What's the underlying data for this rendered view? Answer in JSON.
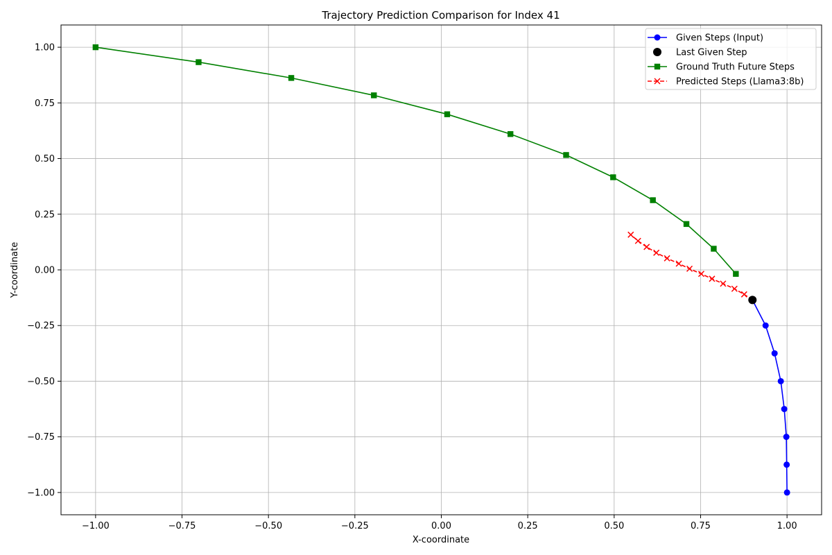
{
  "chart_data": {
    "type": "line",
    "title": "Trajectory Prediction Comparison for Index 41",
    "xlabel": "X-coordinate",
    "ylabel": "Y-coordinate",
    "xlim": [
      -1.1,
      1.1
    ],
    "ylim": [
      -1.1,
      1.1
    ],
    "xticks": [
      -1.0,
      -0.75,
      -0.5,
      -0.25,
      0.0,
      0.25,
      0.5,
      0.75,
      1.0
    ],
    "yticks": [
      -1.0,
      -0.75,
      -0.5,
      -0.25,
      0.0,
      0.25,
      0.5,
      0.75,
      1.0
    ],
    "xtick_labels": [
      "−1.00",
      "−0.75",
      "−0.50",
      "−0.25",
      "0.00",
      "0.25",
      "0.50",
      "0.75",
      "1.00"
    ],
    "ytick_labels": [
      "−1.00",
      "−0.75",
      "−0.50",
      "−0.25",
      "0.00",
      "0.25",
      "0.50",
      "0.75",
      "1.00"
    ],
    "grid": true,
    "legend_position": "top-right",
    "series": [
      {
        "name": "Given Steps (Input)",
        "color": "#0000ff",
        "marker": "circle",
        "linestyle": "solid",
        "x": [
          1.0,
          0.999,
          0.998,
          0.992,
          0.982,
          0.964,
          0.938,
          0.9
        ],
        "y": [
          -1.0,
          -0.875,
          -0.75,
          -0.625,
          -0.5,
          -0.375,
          -0.25,
          -0.135
        ]
      },
      {
        "name": "Last Given Step",
        "color": "#000000",
        "marker": "circle-large",
        "linestyle": "none",
        "x": [
          0.9
        ],
        "y": [
          -0.135
        ]
      },
      {
        "name": "Ground Truth Future Steps",
        "color": "#008000",
        "marker": "square",
        "linestyle": "solid",
        "x": [
          -1.0,
          -0.702,
          -0.434,
          -0.195,
          0.017,
          0.2,
          0.361,
          0.497,
          0.612,
          0.709,
          0.788,
          0.852
        ],
        "y": [
          1.0,
          0.933,
          0.862,
          0.784,
          0.699,
          0.61,
          0.516,
          0.416,
          0.313,
          0.206,
          0.095,
          -0.018
        ]
      },
      {
        "name": "Predicted Steps (Llama3:8b)",
        "color": "#ff0000",
        "marker": "x",
        "linestyle": "dashed",
        "x": [
          0.9,
          0.876,
          0.848,
          0.815,
          0.783,
          0.752,
          0.718,
          0.687,
          0.653,
          0.622,
          0.594,
          0.569,
          0.548
        ],
        "y": [
          -0.135,
          -0.11,
          -0.085,
          -0.062,
          -0.04,
          -0.018,
          0.005,
          0.028,
          0.052,
          0.077,
          0.103,
          0.13,
          0.158
        ]
      }
    ]
  }
}
